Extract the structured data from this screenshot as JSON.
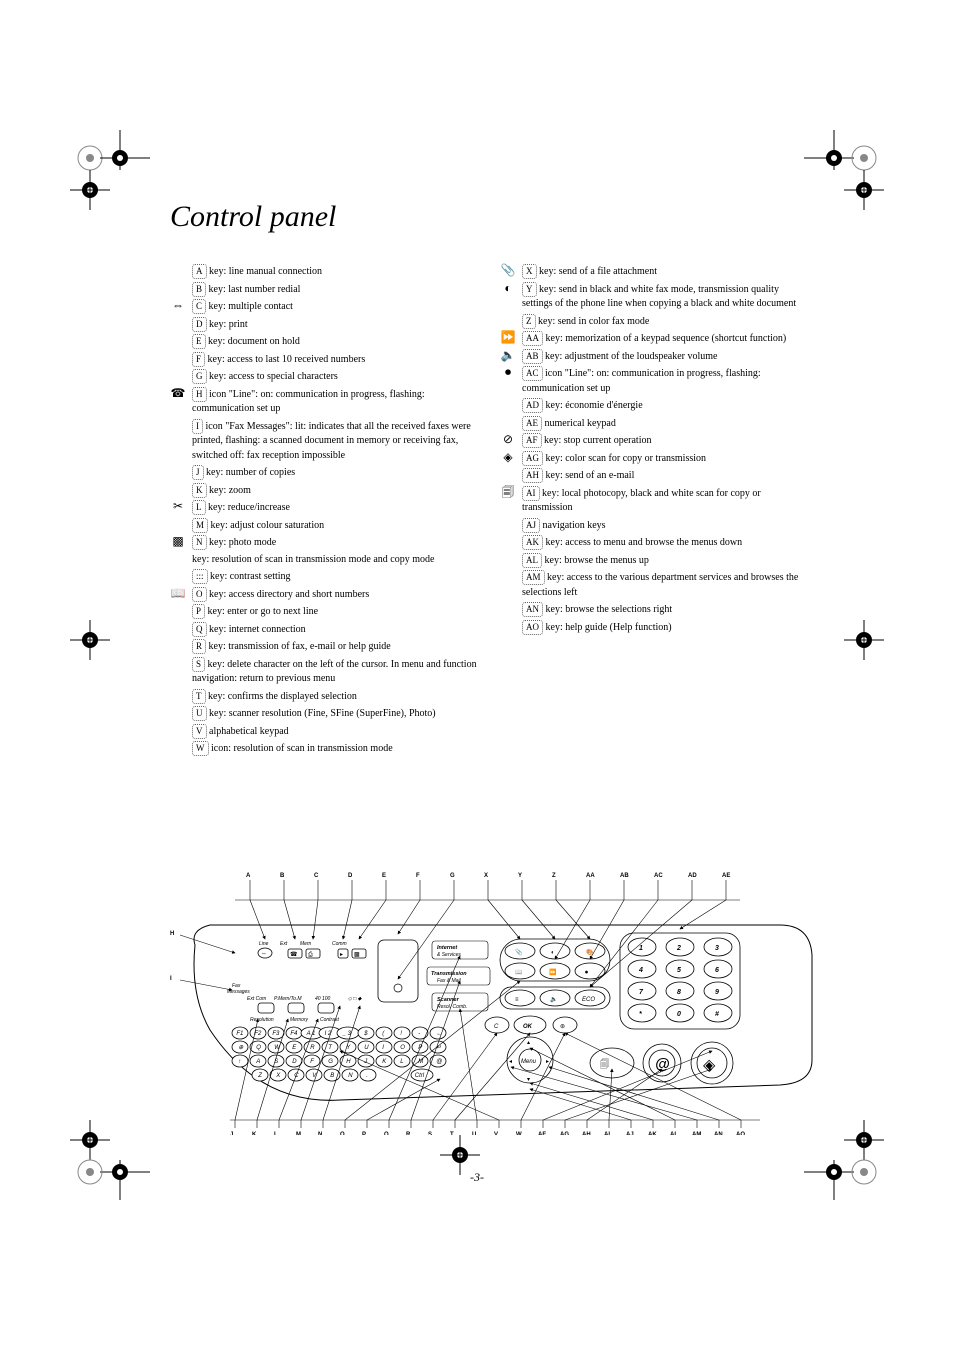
{
  "title": "Control panel",
  "footer_page": "-3-",
  "left_col": [
    {
      "icon": "",
      "key": "A",
      "text": "key: line manual connection"
    },
    {
      "icon": "",
      "key": "B",
      "text": "key: last number redial"
    },
    {
      "icon": "⇔",
      "key": "C",
      "text": "key: multiple contact"
    },
    {
      "icon": "",
      "key": "D",
      "text": "key: print"
    },
    {
      "icon": "",
      "key": "E",
      "text": "key: document on hold"
    },
    {
      "icon": "",
      "key": "F",
      "text": "key: access to last 10 received numbers"
    },
    {
      "icon": "",
      "key": "G",
      "text": "key: access to special characters"
    },
    {
      "icon": "☎",
      "key": "H",
      "text": "icon \"Line\": on: communication in progress, flashing: communication set up"
    },
    {
      "icon": "",
      "key": "I",
      "text": "icon \"Fax Messages\": lit: indicates that all the received faxes were printed, flashing: a scanned document in memory or receiving fax, switched off: fax reception impossible"
    },
    {
      "icon": "",
      "key": "J",
      "text": "key: number of copies"
    },
    {
      "icon": "",
      "key": "K",
      "text": "key: zoom"
    },
    {
      "icon": "✂",
      "key": "L",
      "text": "key: reduce/increase"
    },
    {
      "icon": "",
      "key": "M",
      "text": "key: adjust colour saturation"
    },
    {
      "icon": "▩",
      "key": "N",
      "text": "key: photo mode"
    },
    {
      "icon": "",
      "key": "",
      "text": "key: resolution of scan in transmission mode and copy mode"
    },
    {
      "icon": "",
      "key": ":::",
      "text": "key: contrast setting"
    },
    {
      "icon": "📖",
      "key": "O",
      "text": "key: access directory and short numbers"
    },
    {
      "icon": "",
      "key": "P",
      "text": "key: enter or go to next line"
    },
    {
      "icon": "",
      "key": "Q",
      "text": "key: internet connection"
    },
    {
      "icon": "",
      "key": "R",
      "text": "key: transmission of fax, e-mail or help guide"
    },
    {
      "icon": "",
      "key": "S",
      "text": "key: delete character on the left of the cursor. In menu and function navigation: return to previous menu"
    },
    {
      "icon": "",
      "key": "T",
      "text": "key: confirms the displayed selection"
    },
    {
      "icon": "",
      "key": "U",
      "text": "key: scanner resolution (Fine, SFine (SuperFine), Photo)"
    },
    {
      "icon": "",
      "key": "V",
      "text": "alphabetical keypad"
    },
    {
      "icon": "",
      "key": "W",
      "text": "icon: resolution of scan in transmission mode"
    }
  ],
  "right_col": [
    {
      "icon": "📎",
      "key": "X",
      "text": "key: send of a file attachment"
    },
    {
      "icon": "◐",
      "key": "Y",
      "text": "key: send in black and white fax mode, transmission quality settings of the phone line when copying a black and white document"
    },
    {
      "icon": "",
      "key": "Z",
      "text": "key: send in color fax mode"
    },
    {
      "icon": "⏩",
      "key": "AA",
      "text": "key: memorization of a keypad sequence (shortcut function)"
    },
    {
      "icon": "🔈",
      "key": "AB",
      "text": "key: adjustment of the loudspeaker volume"
    },
    {
      "icon": "⏺",
      "key": "AC",
      "text": "icon \"Line\": on: communication in progress, flashing: communication set up"
    },
    {
      "icon": "",
      "key": "AD",
      "text": "key: économie d'énergie"
    },
    {
      "icon": "",
      "key": "AE",
      "text": "numerical keypad"
    },
    {
      "icon": "⊘",
      "key": "AF",
      "text": "key: stop current operation"
    },
    {
      "icon": "◈",
      "key": "AG",
      "text": "key: color scan for copy or transmission"
    },
    {
      "icon": "",
      "key": "AH",
      "text": "key: send of an e-mail"
    },
    {
      "icon": "🗐",
      "key": "AI",
      "text": "key: local photocopy, black and white scan for copy or transmission"
    },
    {
      "icon": "",
      "key": "AJ",
      "text": "navigation keys"
    },
    {
      "icon": "",
      "key": "AK",
      "text": "key: access to menu and browse the menus down"
    },
    {
      "icon": "",
      "key": "AL",
      "text": "key: browse the menus up"
    },
    {
      "icon": "",
      "key": "AM",
      "text": "key: access to the various department services and browses the selections left"
    },
    {
      "icon": "",
      "key": "AN",
      "text": "key: browse the selections right"
    },
    {
      "icon": "",
      "key": "AO",
      "text": "key: help guide (Help function)"
    }
  ],
  "diagram": {
    "top_labels": [
      "A",
      "B",
      "C",
      "D",
      "E",
      "F",
      "G",
      "X",
      "Y",
      "Z",
      "AA",
      "AB",
      "AC",
      "AD",
      "AE"
    ],
    "left_labels": [
      "H",
      "I"
    ],
    "bottom_labels": [
      "J",
      "K",
      "L",
      "M",
      "N",
      "O",
      "P",
      "Q",
      "R",
      "S",
      "T",
      "U",
      "V",
      "W",
      "AF",
      "AG",
      "AH",
      "AI",
      "AJ",
      "AK",
      "AL",
      "AM",
      "AN",
      "AO"
    ],
    "panel_texts": {
      "line": "Line",
      "ext": "Ext. Com",
      "pmem": "P.Mem/To. M",
      "messages": "Messages",
      "resolution": "Resolution",
      "memory": "Memory",
      "contrast": "Contrast",
      "internet": "Internet\n& Services",
      "transmission": "Transmission\nFax & Web",
      "scanner": "Scanner\nResol. Comb.",
      "eco": "ECO",
      "ok": "OK",
      "c": "C",
      "menu": "Menu",
      "at": "@"
    },
    "qwerty": [
      [
        "F1",
        "F2",
        "F3",
        "F4",
        "A 1",
        "I 2",
        "_ 3",
        "$",
        "(",
        "!",
        "-",
        "←"
      ],
      [
        "⊕",
        "Q",
        "W",
        "E",
        "R",
        "T",
        "Y",
        "U",
        "I",
        "O",
        "P",
        "↵"
      ],
      [
        "↑",
        "A",
        "S",
        "D",
        "F",
        "G",
        "H",
        "J",
        "K",
        "L",
        "M",
        "@"
      ],
      [
        "Z",
        "X",
        "C",
        "V",
        "B",
        "N",
        ".",
        "",
        "",
        "Ctrl"
      ]
    ],
    "numpad": [
      [
        "1",
        "2",
        "3"
      ],
      [
        "4",
        "5",
        "6"
      ],
      [
        "7",
        "8",
        "9"
      ],
      [
        "*",
        "0",
        "#"
      ]
    ],
    "colors": {
      "stroke": "#000000",
      "bg": "#ffffff"
    }
  }
}
